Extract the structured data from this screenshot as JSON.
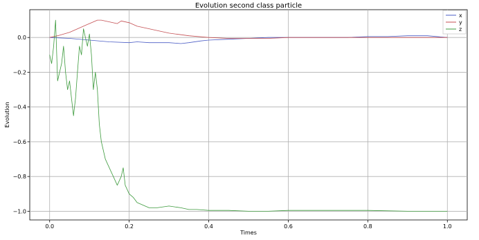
{
  "chart_data": {
    "type": "line",
    "title": "Evolution second class particle",
    "xlabel": "Times",
    "ylabel": "Evolution",
    "xlim": [
      -0.05,
      1.05
    ],
    "ylim": [
      -1.05,
      0.16
    ],
    "grid": true,
    "legend_position": "top-right",
    "xticks": [
      "0.0",
      "0.2",
      "0.4",
      "0.6",
      "0.8",
      "1.0"
    ],
    "yticks": [
      "0.0",
      "−0.2",
      "−0.4",
      "−0.6",
      "−0.8",
      "−1.0"
    ],
    "series": [
      {
        "name": "x",
        "color": "#4a5cc5",
        "x": [
          0.0,
          0.05,
          0.1,
          0.15,
          0.2,
          0.22,
          0.25,
          0.3,
          0.33,
          0.35,
          0.38,
          0.4,
          0.45,
          0.5,
          0.55,
          0.6,
          0.65,
          0.7,
          0.75,
          0.8,
          0.85,
          0.9,
          0.95,
          1.0
        ],
        "values": [
          0.0,
          -0.005,
          -0.015,
          -0.025,
          -0.03,
          -0.025,
          -0.03,
          -0.03,
          -0.035,
          -0.03,
          -0.02,
          -0.015,
          -0.01,
          -0.005,
          0.0,
          0.0,
          0.0,
          0.0,
          0.0,
          0.005,
          0.005,
          0.01,
          0.01,
          0.0
        ]
      },
      {
        "name": "y",
        "color": "#c44e52",
        "x": [
          0.0,
          0.02,
          0.05,
          0.08,
          0.1,
          0.12,
          0.13,
          0.15,
          0.17,
          0.18,
          0.2,
          0.22,
          0.25,
          0.28,
          0.3,
          0.35,
          0.4,
          0.45,
          0.5,
          0.55,
          0.6,
          0.7,
          0.8,
          0.9,
          1.0
        ],
        "values": [
          0.0,
          0.01,
          0.03,
          0.06,
          0.08,
          0.1,
          0.1,
          0.09,
          0.08,
          0.095,
          0.085,
          0.065,
          0.05,
          0.035,
          0.025,
          0.01,
          0.0,
          -0.005,
          -0.005,
          -0.005,
          0.0,
          0.0,
          0.0,
          0.0,
          0.0
        ]
      },
      {
        "name": "z",
        "color": "#3c9a3c",
        "x": [
          0.0,
          0.005,
          0.01,
          0.015,
          0.02,
          0.025,
          0.03,
          0.035,
          0.04,
          0.045,
          0.05,
          0.055,
          0.06,
          0.065,
          0.07,
          0.075,
          0.08,
          0.085,
          0.09,
          0.095,
          0.1,
          0.105,
          0.11,
          0.115,
          0.12,
          0.125,
          0.13,
          0.135,
          0.14,
          0.15,
          0.16,
          0.17,
          0.18,
          0.185,
          0.19,
          0.2,
          0.21,
          0.22,
          0.23,
          0.24,
          0.25,
          0.27,
          0.3,
          0.33,
          0.35,
          0.37,
          0.4,
          0.45,
          0.5,
          0.55,
          0.6,
          0.7,
          0.8,
          0.9,
          1.0
        ],
        "values": [
          -0.1,
          -0.15,
          -0.05,
          0.1,
          -0.25,
          -0.2,
          -0.15,
          -0.05,
          -0.2,
          -0.3,
          -0.25,
          -0.35,
          -0.45,
          -0.35,
          -0.2,
          -0.05,
          -0.1,
          0.05,
          0.0,
          -0.05,
          0.02,
          -0.1,
          -0.3,
          -0.2,
          -0.3,
          -0.5,
          -0.6,
          -0.65,
          -0.7,
          -0.75,
          -0.8,
          -0.85,
          -0.8,
          -0.75,
          -0.85,
          -0.9,
          -0.92,
          -0.95,
          -0.96,
          -0.97,
          -0.98,
          -0.98,
          -0.97,
          -0.98,
          -0.99,
          -0.99,
          -0.995,
          -0.995,
          -1.0,
          -1.0,
          -0.995,
          -0.995,
          -0.995,
          -1.0,
          -1.0
        ]
      }
    ]
  }
}
